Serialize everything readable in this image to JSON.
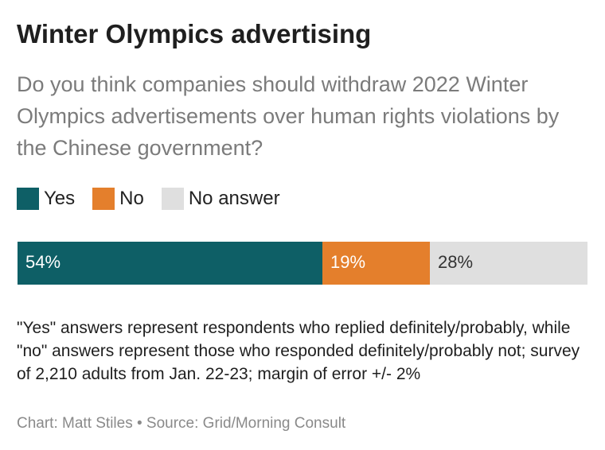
{
  "title": "Winter Olympics advertising",
  "subtitle": "Do you think companies should withdraw 2022 Winter Olympics advertisements over human rights violations by the Chinese government?",
  "note": "\"Yes\" answers represent respondents who replied definitely/probably, while \"no\" answers represent those who responded definitely/probably not; survey of 2,210 adults from Jan. 22-23; margin of error +/- 2%",
  "credit": "Chart: Matt Stiles • Source: Grid/Morning Consult",
  "colors": {
    "yes": "#0e5f66",
    "no": "#e47f2c",
    "no_answer": "#dfdfdf"
  },
  "chart_data": {
    "type": "bar",
    "orientation": "horizontal-stacked",
    "title": "Winter Olympics advertising",
    "categories": [
      ""
    ],
    "series": [
      {
        "name": "Yes",
        "values": [
          54
        ],
        "label": "54%",
        "color": "#0e5f66",
        "label_color": "#ffffff"
      },
      {
        "name": "No",
        "values": [
          19
        ],
        "label": "19%",
        "color": "#e47f2c",
        "label_color": "#ffffff"
      },
      {
        "name": "No answer",
        "values": [
          28
        ],
        "label": "28%",
        "color": "#dfdfdf",
        "label_color": "#333333"
      }
    ],
    "legend": "top-left",
    "grid": false
  }
}
